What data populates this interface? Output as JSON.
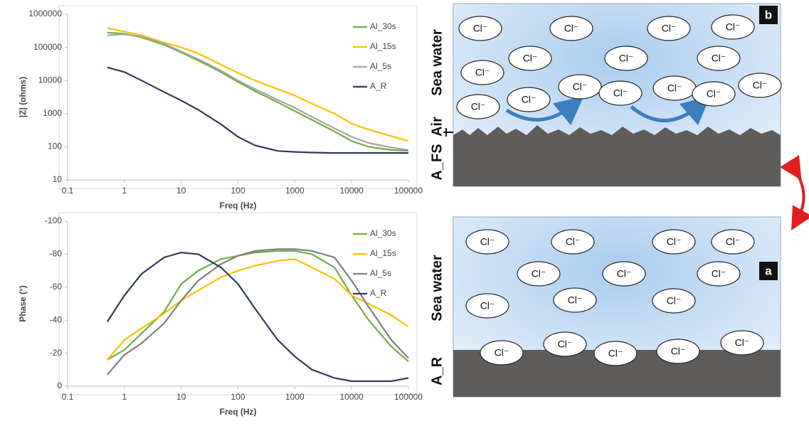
{
  "chart_data": [
    {
      "type": "line",
      "ylabel": "|Z| (ohms)",
      "xlabel": "Freq (Hz)",
      "xlog": true,
      "ylog": true,
      "grid": false,
      "legend": "upper right",
      "x": [
        0.5,
        1,
        2,
        5,
        10,
        20,
        50,
        100,
        200,
        500,
        1000,
        2000,
        5000,
        10000,
        20000,
        50000,
        100000
      ],
      "xlim": [
        0.1,
        100000
      ],
      "xticks": [
        0.1,
        1,
        10,
        100,
        1000,
        10000,
        100000
      ],
      "ylim": [
        10,
        1000000
      ],
      "yticks": [
        10,
        100,
        1000,
        10000,
        100000,
        1000000
      ],
      "series": [
        {
          "name": "Al_30s",
          "color": "#70ad47",
          "values": [
            280000,
            260000,
            200000,
            120000,
            70000,
            40000,
            18000,
            9000,
            4800,
            2200,
            1200,
            650,
            290,
            150,
            100,
            80,
            75
          ]
        },
        {
          "name": "Al_15s",
          "color": "#ffc000",
          "values": [
            380000,
            300000,
            230000,
            140000,
            100000,
            65000,
            30000,
            17000,
            10000,
            5500,
            3500,
            2000,
            1000,
            500,
            330,
            210,
            150
          ]
        },
        {
          "name": "Al_5s",
          "color": "#a5a5a5",
          "values": [
            230000,
            250000,
            210000,
            130000,
            75000,
            44000,
            20000,
            10000,
            5500,
            2600,
            1500,
            800,
            360,
            200,
            130,
            95,
            80
          ]
        },
        {
          "name": "A_R",
          "color": "#2f3b58",
          "values": [
            25000,
            18000,
            10000,
            4500,
            2500,
            1300,
            480,
            200,
            110,
            75,
            70,
            67,
            65,
            65,
            65,
            65,
            65
          ]
        }
      ]
    },
    {
      "type": "line",
      "ylabel": "Phase (°)",
      "xlabel": "Freq (Hz)",
      "xlog": true,
      "ylog": false,
      "grid": false,
      "legend": "upper right",
      "x": [
        0.5,
        1,
        2,
        5,
        10,
        20,
        50,
        100,
        200,
        500,
        1000,
        2000,
        5000,
        10000,
        20000,
        50000,
        100000
      ],
      "xlim": [
        0.1,
        100000
      ],
      "xticks": [
        0.1,
        1,
        10,
        100,
        1000,
        10000,
        100000
      ],
      "ylim": [
        0,
        -100
      ],
      "yticks": [
        0,
        -20,
        -40,
        -60,
        -80,
        -100
      ],
      "series": [
        {
          "name": "Al_30s",
          "color": "#70ad47",
          "values": [
            -16,
            -22,
            -32,
            -45,
            -62,
            -70,
            -77,
            -79,
            -81,
            -82,
            -82,
            -80,
            -72,
            -55,
            -40,
            -24,
            -15
          ]
        },
        {
          "name": "Al_15s",
          "color": "#ffc000",
          "values": [
            -16,
            -28,
            -35,
            -44,
            -52,
            -58,
            -66,
            -70,
            -73,
            -76,
            -77,
            -72,
            -65,
            -55,
            -50,
            -43,
            -36
          ]
        },
        {
          "name": "Al_5s",
          "color": "#7f7f7f",
          "values": [
            -7,
            -19,
            -26,
            -38,
            -52,
            -64,
            -74,
            -79,
            -82,
            -83,
            -83,
            -82,
            -78,
            -64,
            -48,
            -28,
            -17
          ]
        },
        {
          "name": "A_R",
          "color": "#2f3b58",
          "values": [
            -39,
            -55,
            -68,
            -78,
            -81,
            -80,
            -72,
            -62,
            -47,
            -28,
            -18,
            -10,
            -5,
            -3,
            -3,
            -3,
            -5
          ]
        }
      ]
    }
  ],
  "diagrams": [
    {
      "letter": "b",
      "labels": [
        "Sea water",
        "Air",
        "A_FS"
      ],
      "ions": [
        "Cl⁻",
        "Cl⁻",
        "Cl⁻",
        "Cl⁻",
        "Cl⁻",
        "Cl⁻",
        "Cl⁻",
        "Cl⁻",
        "Cl⁻",
        "Cl⁻",
        "Cl⁻",
        "Cl⁻",
        "Cl⁻",
        "Cl⁻",
        "Cl⁻"
      ]
    },
    {
      "letter": "a",
      "labels": [
        "Sea water",
        "A_R"
      ],
      "ions": [
        "Cl⁻",
        "Cl⁻",
        "Cl⁻",
        "Cl⁻",
        "Cl⁻",
        "Cl⁻",
        "Cl⁻",
        "Cl⁻",
        "Cl⁻",
        "Cl⁻",
        "Cl⁻",
        "Cl⁻",
        "Cl⁻",
        "Cl⁻",
        "Cl⁻"
      ]
    }
  ]
}
